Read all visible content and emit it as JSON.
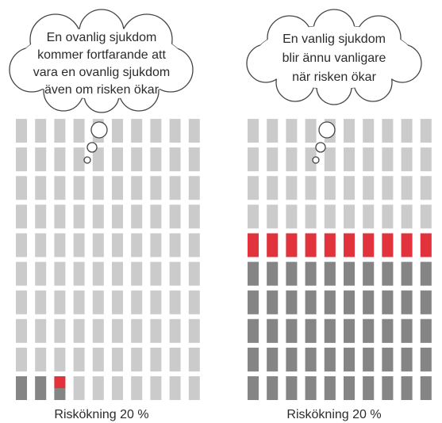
{
  "chart_data": [
    {
      "type": "waffle",
      "title": [
        "En ovanlig sjukdom",
        "kommer fortfarande att",
        "vara en ovanlig sjukdom",
        "även om risken ökar"
      ],
      "caption": "Riskökning 20 %",
      "baseline": 2.5,
      "increase": 0.5,
      "colors": {
        "empty": "#cbcbcb",
        "baseline": "#858585",
        "increase": "#e2333d"
      }
    },
    {
      "type": "waffle",
      "title": [
        "En vanlig sjukdom",
        "blir ännu vanligare",
        "när risken ökar"
      ],
      "caption": "Riskökning 20 %",
      "baseline": 50,
      "increase": 10,
      "colors": {
        "empty": "#cbcbcb",
        "baseline": "#858585",
        "increase": "#e2333d"
      }
    }
  ]
}
